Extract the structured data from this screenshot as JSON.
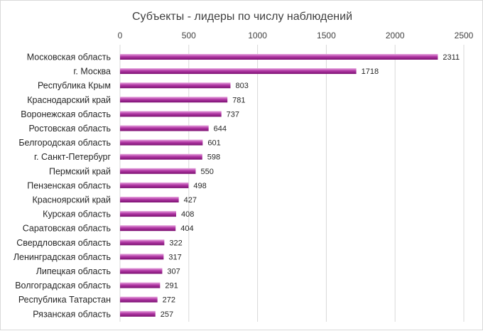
{
  "chart_data": {
    "type": "bar",
    "orientation": "horizontal",
    "title": "Субъекты - лидеры по числу наблюдений",
    "xlim": [
      0,
      2500
    ],
    "ticks": [
      0,
      500,
      1000,
      1500,
      2000,
      2500
    ],
    "axis_position": "top",
    "grid": true,
    "legend": "none",
    "bar_color": "#9b1f8f",
    "categories": [
      "Московская область",
      "г. Москва",
      "Республика Крым",
      "Краснодарский край",
      "Воронежская область",
      "Ростовская область",
      "Белгородская область",
      "г. Санкт-Петербург",
      "Пермский край",
      "Пензенская область",
      "Красноярский край",
      "Курская область",
      "Саратовская область",
      "Свердловская область",
      "Ленинградская область",
      "Липецкая область",
      "Волгоградская область",
      "Республика Татарстан",
      "Рязанская область"
    ],
    "values": [
      2311,
      1718,
      803,
      781,
      737,
      644,
      601,
      598,
      550,
      498,
      427,
      408,
      404,
      322,
      317,
      307,
      291,
      272,
      257
    ]
  }
}
